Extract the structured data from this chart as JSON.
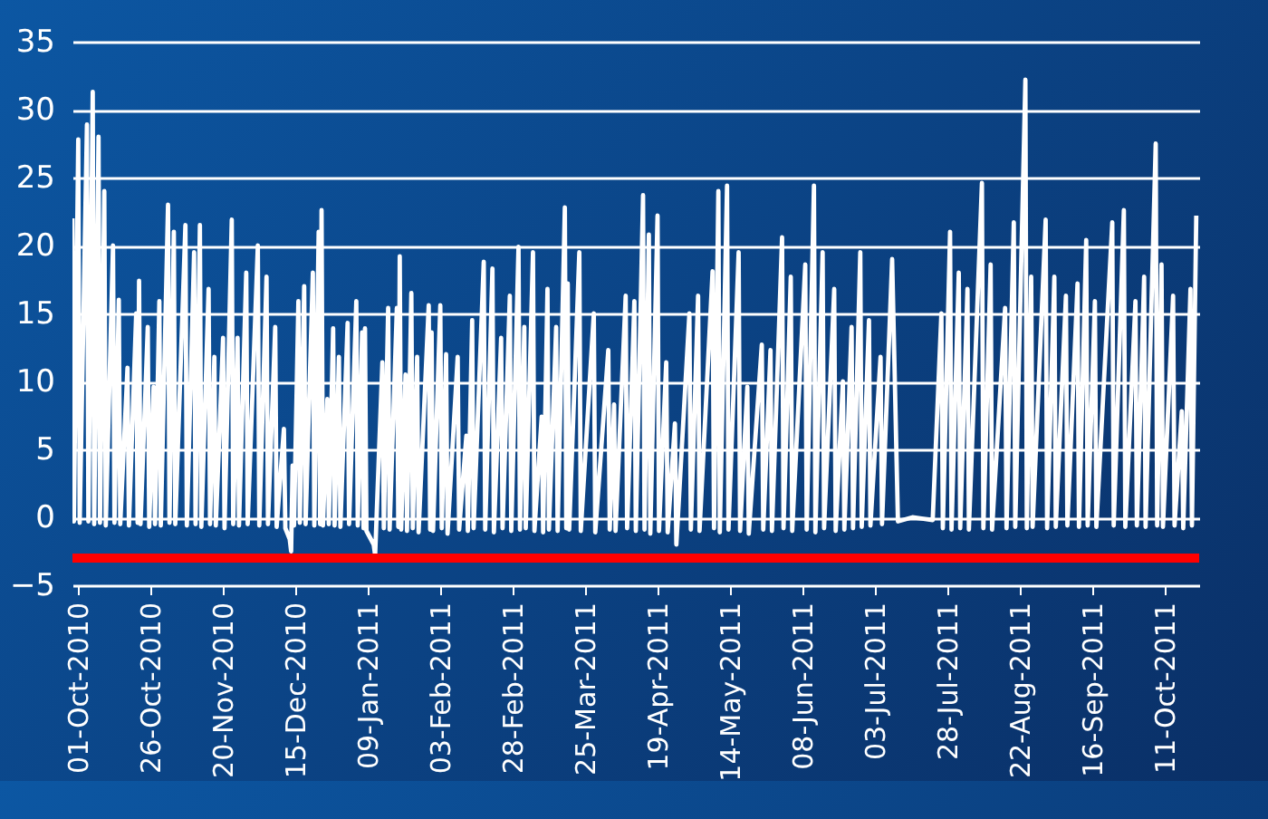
{
  "chart_data": {
    "type": "line",
    "grid": "y",
    "line_style": "solid",
    "marker": "none",
    "x": [
      "2010-09-29",
      "2010-09-29T12:00",
      "2010-10-01",
      "2010-10-01T12:00",
      "2010-10-04",
      "2010-10-04T12:00",
      "2010-10-06",
      "2010-10-06T12:00",
      "2010-10-08",
      "2010-10-08T12:00",
      "2010-10-10",
      "2010-10-10T12:00",
      "2010-10-13",
      "2010-10-13T12:00",
      "2010-10-15",
      "2010-10-15T12:00",
      "2010-10-18",
      "2010-10-18T12:00",
      "2010-10-21",
      "2010-10-21T12:00",
      "2010-10-22",
      "2010-10-22T12:00",
      "2010-10-25",
      "2010-10-25T12:00",
      "2010-10-27",
      "2010-10-27T12:00",
      "2010-10-29",
      "2010-10-29T12:00",
      "2010-11-01",
      "2010-11-01T12:00",
      "2010-11-03",
      "2010-11-03T12:00",
      "2010-11-07",
      "2010-11-07T12:00",
      "2010-11-10",
      "2010-11-10T12:00",
      "2010-11-12",
      "2010-11-12T12:00",
      "2010-11-15",
      "2010-11-15T12:00",
      "2010-11-17",
      "2010-11-17T12:00",
      "2010-11-20",
      "2010-11-20T12:00",
      "2010-11-23",
      "2010-11-23T12:00",
      "2010-11-25",
      "2010-11-25T12:00",
      "2010-11-28",
      "2010-11-28T12:00",
      "2010-12-02",
      "2010-12-02T12:00",
      "2010-12-05",
      "2010-12-05T12:00",
      "2010-12-08",
      "2010-12-08T12:00",
      "2010-12-11",
      "2010-12-11T12:00",
      "2010-12-13",
      "2010-12-13T12:00",
      "2010-12-14",
      "2010-12-14T12:00",
      "2010-12-16",
      "2010-12-16T12:00",
      "2010-12-18",
      "2010-12-18T12:00",
      "2010-12-21",
      "2010-12-21T12:00",
      "2010-12-23",
      "2010-12-23T12:00",
      "2010-12-24",
      "2010-12-24T12:00",
      "2010-12-26",
      "2010-12-26T12:00",
      "2010-12-28",
      "2010-12-28T12:00",
      "2010-12-30",
      "2010-12-30T12:00",
      "2011-01-02",
      "2011-01-02T12:00",
      "2011-01-05",
      "2011-01-05T12:00",
      "2011-01-07",
      "2011-01-07T12:00",
      "2011-01-08",
      "2011-01-08T12:00",
      "2011-01-11",
      "2011-01-11T12:00",
      "2011-01-14",
      "2011-01-14T12:00",
      "2011-01-16",
      "2011-01-16T12:00",
      "2011-01-19",
      "2011-01-19T12:00",
      "2011-01-20",
      "2011-01-20T12:00",
      "2011-01-22",
      "2011-01-22T12:00",
      "2011-01-24",
      "2011-01-24T12:00",
      "2011-01-26",
      "2011-01-26T12:00",
      "2011-01-30",
      "2011-01-30T12:00",
      "2011-01-31",
      "2011-01-31T12:00",
      "2011-02-03",
      "2011-02-03T12:00",
      "2011-02-05",
      "2011-02-05T12:00",
      "2011-02-09",
      "2011-02-09T12:00",
      "2011-02-12",
      "2011-02-12T12:00",
      "2011-02-14",
      "2011-02-14T12:00",
      "2011-02-18",
      "2011-02-18T12:00",
      "2011-02-21",
      "2011-02-21T12:00",
      "2011-02-24",
      "2011-02-24T12:00",
      "2011-02-27",
      "2011-02-27T12:00",
      "2011-03-02",
      "2011-03-02T12:00",
      "2011-03-04",
      "2011-03-04T12:00",
      "2011-03-07",
      "2011-03-07T12:00",
      "2011-03-10",
      "2011-03-10T12:00",
      "2011-03-12",
      "2011-03-12T12:00",
      "2011-03-15",
      "2011-03-15T12:00",
      "2011-03-18",
      "2011-03-18T12:00",
      "2011-03-19",
      "2011-03-19T12:00",
      "2011-03-23",
      "2011-03-23T12:00",
      "2011-03-28",
      "2011-03-28T12:00",
      "2011-04-02",
      "2011-04-02T12:00",
      "2011-04-04",
      "2011-04-04T12:00",
      "2011-04-08",
      "2011-04-08T12:00",
      "2011-04-11",
      "2011-04-11T12:00",
      "2011-04-14",
      "2011-04-14T12:00",
      "2011-04-16",
      "2011-04-16T12:00",
      "2011-04-19",
      "2011-04-19T12:00",
      "2011-04-22",
      "2011-04-22T12:00",
      "2011-04-25",
      "2011-04-25T12:00",
      "2011-04-30",
      "2011-04-30T12:00",
      "2011-05-03",
      "2011-05-03T12:00",
      "2011-05-08",
      "2011-05-08T12:00",
      "2011-05-10",
      "2011-05-10T12:00",
      "2011-05-13",
      "2011-05-13T12:00",
      "2011-05-17",
      "2011-05-17T12:00",
      "2011-05-20",
      "2011-05-20T12:00",
      "2011-05-25",
      "2011-05-25T12:00",
      "2011-05-28",
      "2011-05-28T12:00",
      "2011-06-01",
      "2011-06-01T12:00",
      "2011-06-04",
      "2011-06-04T12:00",
      "2011-06-09",
      "2011-06-09T12:00",
      "2011-06-12",
      "2011-06-12T12:00",
      "2011-06-15",
      "2011-06-15T12:00",
      "2011-06-19",
      "2011-06-19T12:00",
      "2011-06-22",
      "2011-06-22T12:00",
      "2011-06-25",
      "2011-06-25T12:00",
      "2011-06-28",
      "2011-06-28T12:00",
      "2011-07-01",
      "2011-07-01T12:00",
      "2011-07-05",
      "2011-07-05T12:00",
      "2011-07-09",
      "2011-07-11",
      "2011-07-16",
      "2011-07-23",
      "2011-07-26",
      "2011-07-26T12:00",
      "2011-07-29",
      "2011-07-29T12:00",
      "2011-08-01",
      "2011-08-01T12:00",
      "2011-08-04",
      "2011-08-04T12:00",
      "2011-08-09",
      "2011-08-09T12:00",
      "2011-08-12",
      "2011-08-12T12:00",
      "2011-08-17",
      "2011-08-17T12:00",
      "2011-08-20",
      "2011-08-20T12:00",
      "2011-08-24",
      "2011-08-24T12:00",
      "2011-08-26",
      "2011-08-26T12:00",
      "2011-08-31",
      "2011-08-31T12:00",
      "2011-09-03",
      "2011-09-03T12:00",
      "2011-09-07",
      "2011-09-07T12:00",
      "2011-09-11",
      "2011-09-11T12:00",
      "2011-09-14",
      "2011-09-14T12:00",
      "2011-09-17",
      "2011-09-17T12:00",
      "2011-09-23",
      "2011-09-23T12:00",
      "2011-09-27",
      "2011-09-27T12:00",
      "2011-10-01",
      "2011-10-01T12:00",
      "2011-10-04",
      "2011-10-04T12:00",
      "2011-10-08",
      "2011-10-08T12:00",
      "2011-10-10",
      "2011-10-10T12:00",
      "2011-10-14",
      "2011-10-14T12:00",
      "2011-10-17",
      "2011-10-17T12:00",
      "2011-10-20",
      "2011-10-20T12:00",
      "2011-10-22"
    ],
    "series": [
      {
        "color": "#ffffff",
        "values": [
          22,
          -0.3,
          27.8,
          -0.4,
          28.9,
          -0.3,
          31.3,
          -0.5,
          28,
          -0.4,
          24,
          -0.6,
          20,
          -0.4,
          16,
          -0.5,
          11,
          -0.6,
          15,
          -0.4,
          17.4,
          -0.5,
          14,
          -0.7,
          9.6,
          -0.5,
          15.9,
          -0.6,
          23,
          -0.4,
          21,
          -0.5,
          21.5,
          -0.6,
          19.5,
          -0.5,
          21.5,
          -0.7,
          16.8,
          -0.5,
          11.8,
          -0.6,
          13.2,
          -0.8,
          21.9,
          -0.5,
          13.2,
          -0.6,
          18,
          -0.5,
          20,
          -0.6,
          17.7,
          -0.5,
          14,
          -0.7,
          6.5,
          -0.8,
          -1.6,
          -2.5,
          3.8,
          -0.6,
          15.9,
          -0.4,
          17,
          -0.5,
          18,
          -0.6,
          21,
          -0.5,
          22.6,
          -0.6,
          8.7,
          -0.5,
          13.9,
          -0.6,
          11.8,
          -0.7,
          14.3,
          -0.5,
          15.9,
          -0.6,
          13.6,
          -0.8,
          13.9,
          -1,
          -2,
          -2.8,
          11.4,
          -0.8,
          15.4,
          -0.9,
          15.4,
          -0.7,
          19.2,
          -0.9,
          10.5,
          -1,
          16.5,
          -0.8,
          11.8,
          -1.1,
          15.6,
          -0.9,
          13.6,
          -1,
          15.6,
          -0.8,
          12,
          -1.2,
          11.8,
          -0.9,
          6,
          -1,
          14.5,
          -0.8,
          18.8,
          -0.9,
          18.3,
          -1.1,
          13.2,
          -0.8,
          16.3,
          -1,
          19.9,
          -0.9,
          14,
          -0.8,
          19.5,
          -1,
          7.4,
          -1.1,
          16.8,
          -0.9,
          14,
          -1,
          22.8,
          -0.8,
          17.2,
          -0.9,
          19.5,
          -1,
          15,
          -1.1,
          12.3,
          -0.9,
          8.3,
          -1,
          16.3,
          -0.8,
          15.9,
          -1,
          23.7,
          -0.9,
          20.8,
          -1.2,
          22.2,
          -1,
          11.4,
          -1.1,
          6.9,
          -2,
          15,
          -0.9,
          16.3,
          -1,
          18.1,
          -0.8,
          24,
          -1.1,
          24.4,
          -0.9,
          19.5,
          -1,
          9.6,
          -1.2,
          12.7,
          -0.9,
          12.3,
          -1,
          20.6,
          -0.8,
          17.7,
          -1,
          18.6,
          -0.9,
          24.4,
          -1.1,
          19.5,
          -0.8,
          16.8,
          -1,
          10,
          -0.9,
          14,
          -0.8,
          19.5,
          -0.7,
          14.5,
          -0.6,
          11.8,
          -0.5,
          19,
          -0.3,
          0,
          -0.2,
          15,
          -0.8,
          21,
          -0.9,
          18,
          -0.8,
          16.8,
          -0.9,
          24.6,
          -0.8,
          18.6,
          -0.9,
          15.4,
          -0.8,
          21.7,
          -0.7,
          32.2,
          -0.8,
          17.7,
          -0.7,
          21.9,
          -0.8,
          17.7,
          -0.7,
          16.3,
          -0.6,
          17.2,
          -0.7,
          20.4,
          -0.6,
          15.9,
          -0.7,
          21.7,
          -0.6,
          22.6,
          -0.7,
          15.9,
          -0.6,
          17.7,
          -0.7,
          27.5,
          -0.6,
          18.6,
          -0.7,
          16.3,
          -0.6,
          7.8,
          -0.8,
          16.8,
          -0.6,
          22.2
        ]
      }
    ],
    "xlim": [
      "2010-09-29",
      "2011-10-23"
    ],
    "xticks": [
      {
        "value": "2010-10-01",
        "label": "01-Oct-2010"
      },
      {
        "value": "2010-10-26",
        "label": "26-Oct-2010"
      },
      {
        "value": "2010-11-20",
        "label": "20-Nov-2010"
      },
      {
        "value": "2010-12-15",
        "label": "15-Dec-2010"
      },
      {
        "value": "2011-01-09",
        "label": "09-Jan-2011"
      },
      {
        "value": "2011-02-03",
        "label": "03-Feb-2011"
      },
      {
        "value": "2011-02-28",
        "label": "28-Feb-2011"
      },
      {
        "value": "2011-03-25",
        "label": "25-Mar-2011"
      },
      {
        "value": "2011-04-19",
        "label": "19-Apr-2011"
      },
      {
        "value": "2011-05-14",
        "label": "14-May-2011"
      },
      {
        "value": "2011-06-08",
        "label": "08-Jun-2011"
      },
      {
        "value": "2011-07-03",
        "label": "03-Jul-2011"
      },
      {
        "value": "2011-07-28",
        "label": "28-Jul-2011"
      },
      {
        "value": "2011-08-22",
        "label": "22-Aug-2011"
      },
      {
        "value": "2011-09-16",
        "label": "16-Sep-2011"
      },
      {
        "value": "2011-10-11",
        "label": "11-Oct-2011"
      }
    ],
    "ylim": [
      -5,
      35
    ],
    "yticks": [
      -5,
      0,
      5,
      10,
      15,
      20,
      25,
      30,
      35
    ],
    "ref_lines": [
      {
        "axis": "y",
        "value": -3,
        "color": "#ff0000"
      }
    ]
  }
}
